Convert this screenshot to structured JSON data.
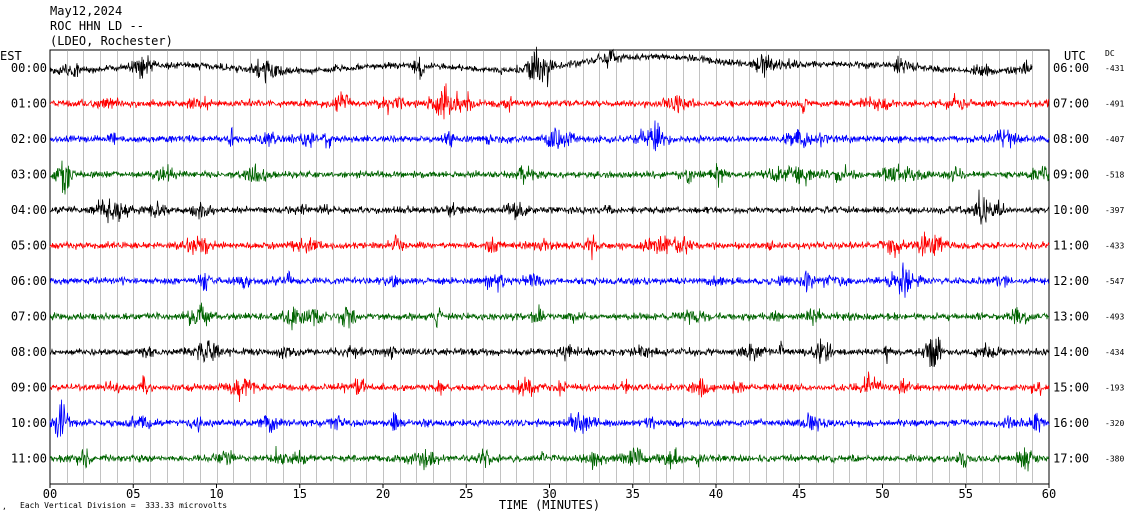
{
  "header": {
    "date": "May12,2024",
    "station": "ROC HHN LD --",
    "network": "(LDEO, Rochester)"
  },
  "left_zone_label": "EST",
  "right_zone_label": "UTC",
  "dc_label": "DC",
  "footer": {
    "scale_note": "Each Vertical Division =  333.33 microvolts"
  },
  "chart_data": {
    "type": "line",
    "title": "May12,2024 ROC HHN LD -- (LDEO, Rochester)",
    "xlabel": "TIME (MINUTES)",
    "xlim": [
      0,
      60
    ],
    "x_ticks": [
      "00",
      "05",
      "10",
      "15",
      "20",
      "25",
      "30",
      "35",
      "40",
      "45",
      "50",
      "55",
      "60"
    ],
    "grid": true,
    "trace_colors": [
      "#000000",
      "#ff0000",
      "#0000ff",
      "#006400"
    ],
    "rows": [
      {
        "est": "00:00",
        "utc": "06:00",
        "dc": "-431",
        "color": "#000000",
        "end_minute": 59
      },
      {
        "est": "01:00",
        "utc": "07:00",
        "dc": "-491",
        "color": "#ff0000",
        "end_minute": 60
      },
      {
        "est": "02:00",
        "utc": "08:00",
        "dc": "-407",
        "color": "#0000ff",
        "end_minute": 60
      },
      {
        "est": "03:00",
        "utc": "09:00",
        "dc": "-518",
        "color": "#006400",
        "end_minute": 60
      },
      {
        "est": "04:00",
        "utc": "10:00",
        "dc": "-397",
        "color": "#000000",
        "end_minute": 60
      },
      {
        "est": "05:00",
        "utc": "11:00",
        "dc": "-433",
        "color": "#ff0000",
        "end_minute": 60
      },
      {
        "est": "06:00",
        "utc": "12:00",
        "dc": "-547",
        "color": "#0000ff",
        "end_minute": 60
      },
      {
        "est": "07:00",
        "utc": "13:00",
        "dc": "-493",
        "color": "#006400",
        "end_minute": 60
      },
      {
        "est": "08:00",
        "utc": "14:00",
        "dc": "-434",
        "color": "#000000",
        "end_minute": 60
      },
      {
        "est": "09:00",
        "utc": "15:00",
        "dc": "-193",
        "color": "#ff0000",
        "end_minute": 60
      },
      {
        "est": "10:00",
        "utc": "16:00",
        "dc": "-320",
        "color": "#0000ff",
        "end_minute": 60
      },
      {
        "est": "11:00",
        "utc": "17:00",
        "dc": "-380",
        "color": "#006400",
        "end_minute": 60
      }
    ]
  }
}
